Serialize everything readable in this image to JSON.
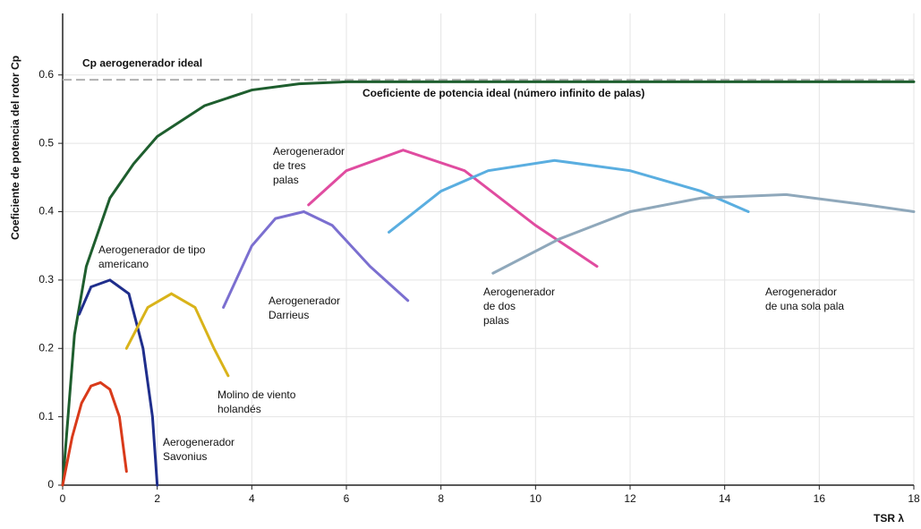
{
  "chart_data": {
    "type": "line",
    "xlabel": "TSR λ",
    "ylabel": "Coeficiente de potencia del rotor Cp",
    "xlim": [
      0,
      18
    ],
    "ylim": [
      0,
      0.69
    ],
    "xticks": [
      0,
      2,
      4,
      6,
      8,
      10,
      12,
      14,
      16,
      18
    ],
    "yticks": [
      0,
      0.1,
      0.2,
      0.3,
      0.4,
      0.5,
      0.6
    ],
    "grid": true,
    "reference_line": {
      "value": 0.593,
      "label": "Cp aerogenerador ideal",
      "color": "#b0b0b0"
    },
    "series": [
      {
        "label": [
          "Coeficiente de potencia ideal (número infinito de palas)"
        ],
        "color": "#1e5e2e",
        "x": [
          0,
          0.25,
          0.5,
          1,
          1.5,
          2,
          3,
          4,
          5,
          6,
          8,
          10,
          12,
          14,
          16,
          18
        ],
        "values": [
          0,
          0.22,
          0.32,
          0.42,
          0.47,
          0.51,
          0.555,
          0.578,
          0.587,
          0.59,
          0.59,
          0.59,
          0.59,
          0.59,
          0.59,
          0.59
        ]
      },
      {
        "label": [
          "Aerogenerador",
          "Savonius"
        ],
        "color": "#d93a1a",
        "x": [
          0,
          0.2,
          0.4,
          0.6,
          0.8,
          1.0,
          1.2,
          1.35
        ],
        "values": [
          0,
          0.07,
          0.12,
          0.145,
          0.15,
          0.14,
          0.1,
          0.02
        ]
      },
      {
        "label": [
          "Aerogenerador de tipo",
          "americano"
        ],
        "color": "#1f2e8c",
        "x": [
          0.35,
          0.6,
          1.0,
          1.4,
          1.7,
          1.9,
          2.0
        ],
        "values": [
          0.25,
          0.29,
          0.3,
          0.28,
          0.2,
          0.1,
          0
        ]
      },
      {
        "label": [
          "Molino de viento",
          "holandés"
        ],
        "color": "#d9b31a",
        "x": [
          1.35,
          1.8,
          2.3,
          2.8,
          3.2,
          3.5
        ],
        "values": [
          0.2,
          0.26,
          0.28,
          0.26,
          0.2,
          0.16
        ]
      },
      {
        "label": [
          "Aerogenerador",
          "Darrieus"
        ],
        "color": "#7b6fd0",
        "x": [
          3.4,
          4.0,
          4.5,
          5.1,
          5.7,
          6.5,
          7.3
        ],
        "values": [
          0.26,
          0.35,
          0.39,
          0.4,
          0.38,
          0.32,
          0.27
        ]
      },
      {
        "label": [
          "Aerogenerador",
          "de tres",
          "palas"
        ],
        "color": "#e04ca0",
        "x": [
          5.2,
          6,
          7.2,
          8.5,
          10,
          11.3
        ],
        "values": [
          0.41,
          0.46,
          0.49,
          0.46,
          0.38,
          0.32
        ]
      },
      {
        "label": [
          "Aerogenerador",
          "de dos",
          "palas"
        ],
        "color": "#5aaee0",
        "x": [
          6.9,
          8,
          9,
          10.4,
          12,
          13.5,
          14.5
        ],
        "values": [
          0.37,
          0.43,
          0.46,
          0.475,
          0.46,
          0.43,
          0.4
        ]
      },
      {
        "label": [
          "Aerogenerador",
          "de una sola pala"
        ],
        "color": "#8fa8bb",
        "x": [
          9.1,
          10.5,
          12,
          13.5,
          15.3,
          17,
          18
        ],
        "values": [
          0.31,
          0.36,
          0.4,
          0.42,
          0.425,
          0.41,
          0.4
        ]
      }
    ]
  }
}
